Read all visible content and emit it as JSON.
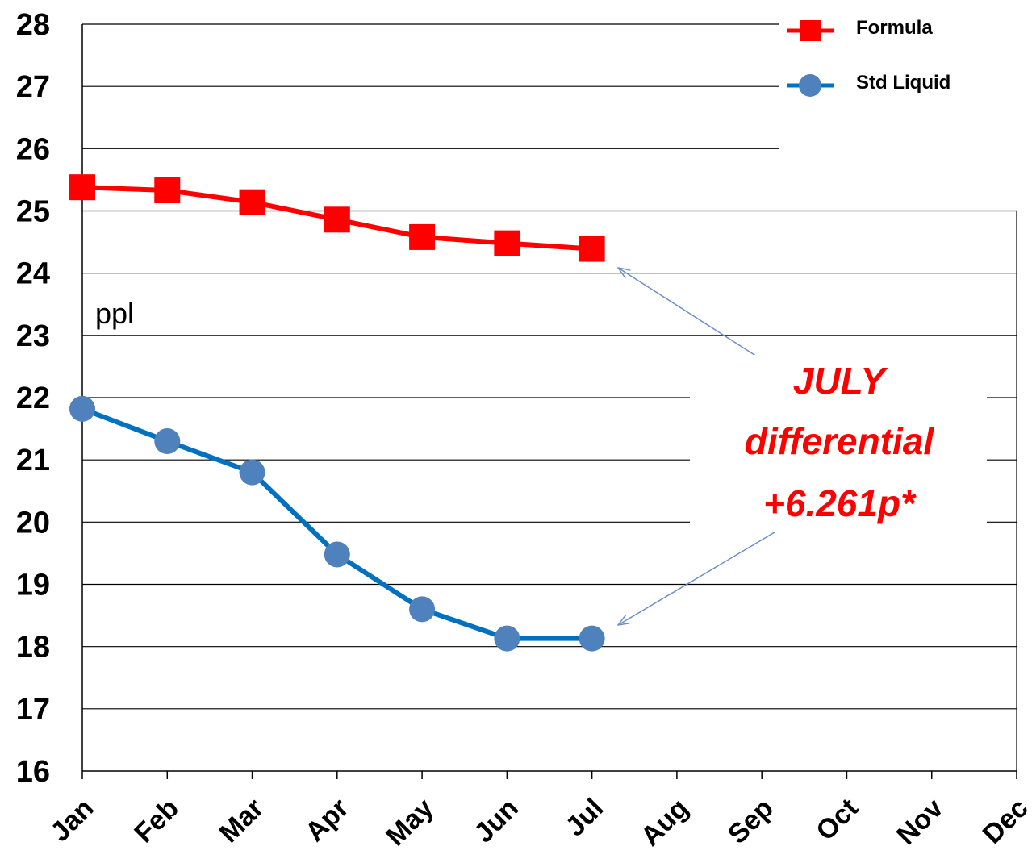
{
  "chart_data": {
    "type": "line",
    "categories": [
      "Jan",
      "Feb",
      "Mar",
      "Apr",
      "May",
      "Jun",
      "Jul",
      "Aug",
      "Sep",
      "Oct",
      "Nov",
      "Dec"
    ],
    "series": [
      {
        "name": "Formula",
        "color": "#ff0000",
        "marker": "square",
        "values": [
          25.38,
          25.33,
          25.14,
          24.86,
          24.58,
          24.48,
          24.39,
          null,
          null,
          null,
          null,
          null
        ]
      },
      {
        "name": "Std Liquid",
        "color": "#4f81bd",
        "line_color": "#0070c0",
        "marker": "circle",
        "values": [
          21.82,
          21.3,
          20.8,
          19.48,
          18.6,
          18.13,
          18.13,
          null,
          null,
          null,
          null,
          null
        ]
      }
    ],
    "yticks": [
      "16",
      "17",
      "18",
      "19",
      "20",
      "21",
      "22",
      "23",
      "24",
      "25",
      "26",
      "27",
      "28"
    ],
    "ylim": [
      16,
      28
    ],
    "ylabel": "",
    "xlabel": "",
    "title": "",
    "grid": true,
    "legend_position": "top-right",
    "unit_label": "ppl",
    "annotation": {
      "lines": [
        "JULY",
        "differential",
        "+6.261p*"
      ],
      "color": "#ff0000",
      "arrow_targets": [
        {
          "series": "Formula",
          "category": "Jul"
        },
        {
          "series": "Std Liquid",
          "category": "Jul"
        }
      ]
    }
  }
}
